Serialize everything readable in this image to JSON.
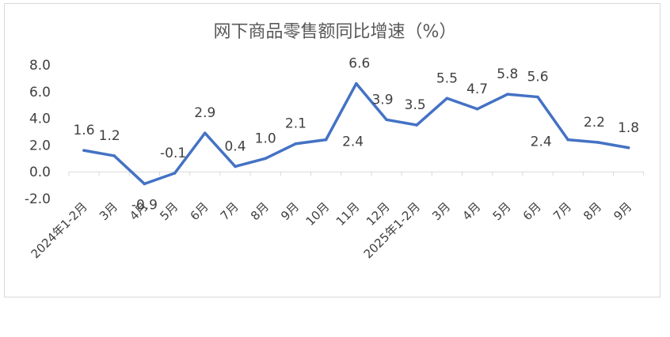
{
  "chart_data": {
    "type": "line",
    "title": "网下商品零售额同比增速（%）",
    "categories": [
      "2024年1-2月",
      "3月",
      "4月",
      "5月",
      "6月",
      "7月",
      "8月",
      "9月",
      "10月",
      "11月",
      "12月",
      "2025年1-2月",
      "3月",
      "4月",
      "5月",
      "6月",
      "7月",
      "8月",
      "9月"
    ],
    "series": [
      {
        "values": [
          1.6,
          1.2,
          -0.9,
          -0.1,
          2.9,
          0.4,
          1.0,
          2.1,
          2.4,
          6.6,
          3.9,
          3.5,
          5.5,
          4.7,
          5.8,
          5.6,
          2.4,
          2.2,
          1.8
        ],
        "labels": [
          "1.6",
          "1.2",
          "-0.9",
          "-0.1",
          "2.9",
          "0.4",
          "1.0",
          "2.1",
          "2.4",
          "6.6",
          "3.9",
          "3.5",
          "5.5",
          "4.7",
          "5.8",
          "5.6",
          "2.4",
          "2.2",
          "1.8"
        ],
        "color": "#4472c4"
      }
    ],
    "yticks": [
      "8.0",
      "6.0",
      "4.0",
      "2.0",
      "0.0",
      "-2.0"
    ],
    "ylim": [
      -2,
      8
    ],
    "grid": false,
    "legend": "none"
  }
}
